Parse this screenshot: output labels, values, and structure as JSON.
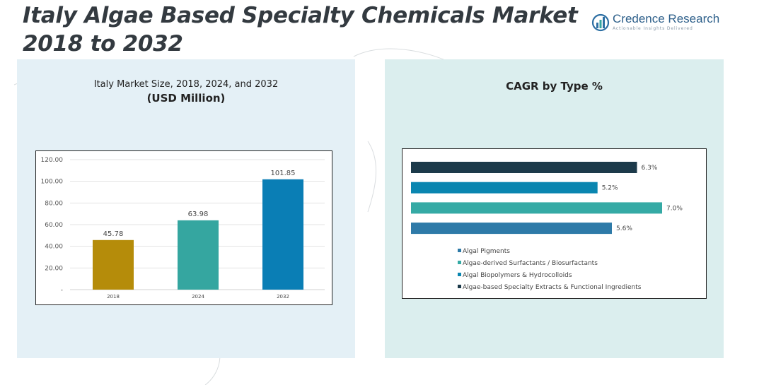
{
  "header": {
    "title_line1": "Italy Algae Based Specialty Chemicals Market",
    "title_line2": "2018 to 2032",
    "logo_name": "Credence Research",
    "logo_tagline": "Actionable Insights Delivered"
  },
  "left_panel": {
    "title_line1": "Italy Market Size, 2018, 2024, and 2032",
    "title_line2": "(USD Million)"
  },
  "right_panel": {
    "title": "CAGR by Type %"
  },
  "colors": {
    "bar_2018": "#b58c0a",
    "bar_2024": "#35a6a0",
    "bar_2032": "#0a7eb5",
    "extracts": "#1c3a4a",
    "biopolymers": "#0a86b0",
    "surfactants": "#35aaa5",
    "pigments": "#2e7aa8"
  },
  "chart_data": [
    {
      "type": "bar",
      "categories": [
        "2018",
        "2024",
        "2032"
      ],
      "values": [
        45.78,
        63.98,
        101.85
      ],
      "value_labels": [
        "45.78",
        "63.98",
        "101.85"
      ],
      "ylim": [
        0,
        120
      ],
      "yticks": [
        0,
        20,
        40,
        60,
        80,
        100,
        120
      ],
      "ytick_labels": [
        "-",
        "20.00",
        "40.00",
        "60.00",
        "80.00",
        "100.00",
        "120.00"
      ],
      "grid": true
    },
    {
      "type": "bar",
      "orientation": "horizontal",
      "categories": [
        "Algae-based Specialty Extracts & Functional Ingredients",
        "Algal Biopolymers & Hydrocolloids",
        "Algae-derived Surfactants / Biosurfactants",
        "Algal Pigments"
      ],
      "values": [
        6.3,
        5.2,
        7.0,
        5.6
      ],
      "value_labels": [
        "6.3%",
        "5.2%",
        "7.0%",
        "5.6%"
      ],
      "legend": [
        "Algal Pigments",
        "Algae-derived Surfactants / Biosurfactants",
        "Algal Biopolymers & Hydrocolloids",
        "Algae-based Specialty Extracts & Functional Ingredients"
      ],
      "legend_placement": "bottom",
      "grid": false
    }
  ]
}
